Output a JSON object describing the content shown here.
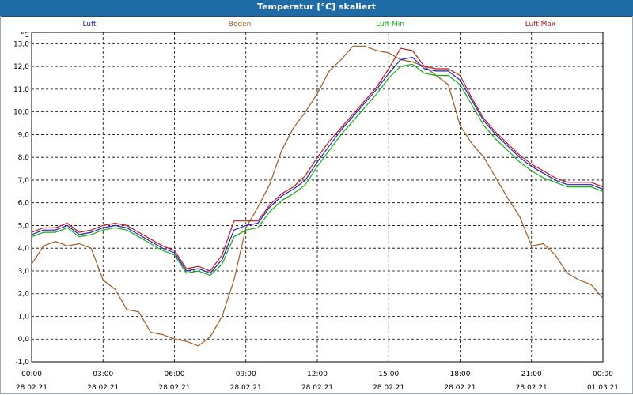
{
  "window": {
    "title": "Temperatur [°C] skaliert"
  },
  "chart_data": {
    "type": "line",
    "title": "Temperatur [°C] skaliert",
    "ylabel": "°C",
    "xlabel": "",
    "ylim": [
      -1.0,
      13.5
    ],
    "yticks": [
      -1.0,
      0.0,
      1.0,
      2.0,
      3.0,
      4.0,
      5.0,
      6.0,
      7.0,
      8.0,
      9.0,
      10.0,
      11.0,
      12.0,
      13.0
    ],
    "ytick_labels": [
      "-1,0",
      "0,0",
      "1,0",
      "2,0",
      "3,0",
      "4,0",
      "5,0",
      "6,0",
      "7,0",
      "8,0",
      "9,0",
      "10,0",
      "11,0",
      "12,0",
      "13,0"
    ],
    "xlim": [
      0,
      24
    ],
    "xticks": [
      0,
      3,
      6,
      9,
      12,
      15,
      18,
      21,
      24
    ],
    "xtick_time_labels": [
      "00:00",
      "03:00",
      "06:00",
      "09:00",
      "12:00",
      "15:00",
      "18:00",
      "21:00",
      "00:00"
    ],
    "xtick_date_labels": [
      "28.02.21",
      "28.02.21",
      "28.02.21",
      "28.02.21",
      "28.02.21",
      "28.02.21",
      "28.02.21",
      "28.02.21",
      "01.03.21"
    ],
    "grid": true,
    "legend_position": "top",
    "x": [
      0,
      0.5,
      1,
      1.5,
      2,
      2.5,
      3,
      3.5,
      4,
      4.5,
      5,
      5.5,
      6,
      6.5,
      7,
      7.5,
      8,
      8.5,
      9,
      9.5,
      10,
      10.5,
      11,
      11.5,
      12,
      12.5,
      13,
      13.5,
      14,
      14.5,
      15,
      15.5,
      16,
      16.5,
      17,
      17.5,
      18,
      18.5,
      19,
      19.5,
      20,
      20.5,
      21,
      21.5,
      22,
      22.5,
      23,
      23.5,
      24
    ],
    "series": [
      {
        "name": "Luft",
        "color": "#2020c0",
        "values": [
          4.6,
          4.8,
          4.8,
          5.0,
          4.6,
          4.7,
          4.9,
          5.0,
          4.9,
          4.6,
          4.3,
          4.0,
          3.8,
          3.0,
          3.1,
          2.9,
          3.5,
          4.8,
          5.0,
          5.1,
          5.8,
          6.3,
          6.6,
          7.0,
          7.8,
          8.5,
          9.2,
          9.8,
          10.4,
          11.0,
          11.7,
          12.3,
          12.4,
          11.9,
          11.8,
          11.8,
          11.4,
          10.5,
          9.6,
          9.0,
          8.5,
          8.0,
          7.6,
          7.3,
          7.0,
          6.8,
          6.8,
          6.8,
          6.6
        ]
      },
      {
        "name": "Boden",
        "color": "#a05a1e",
        "values": [
          3.3,
          4.1,
          4.3,
          4.1,
          4.2,
          4.0,
          2.6,
          2.2,
          1.3,
          1.2,
          0.3,
          0.2,
          0.0,
          -0.1,
          -0.3,
          0.1,
          1.0,
          2.6,
          4.9,
          5.8,
          6.8,
          8.3,
          9.3,
          10.0,
          10.8,
          11.8,
          12.3,
          12.9,
          12.9,
          12.7,
          12.6,
          12.3,
          12.2,
          12.0,
          11.6,
          11.2,
          9.4,
          8.6,
          8.0,
          7.1,
          6.2,
          5.4,
          4.1,
          4.2,
          3.7,
          2.9,
          2.6,
          2.4,
          1.8
        ]
      },
      {
        "name": "Luft Min",
        "color": "#10b010",
        "values": [
          4.5,
          4.7,
          4.7,
          4.9,
          4.5,
          4.6,
          4.8,
          4.9,
          4.8,
          4.5,
          4.2,
          3.9,
          3.7,
          2.9,
          3.0,
          2.8,
          3.3,
          4.5,
          4.8,
          4.9,
          5.6,
          6.1,
          6.4,
          6.8,
          7.6,
          8.3,
          9.0,
          9.6,
          10.2,
          10.8,
          11.5,
          12.0,
          12.1,
          11.7,
          11.6,
          11.6,
          11.2,
          10.3,
          9.4,
          8.8,
          8.3,
          7.8,
          7.4,
          7.1,
          6.9,
          6.7,
          6.7,
          6.7,
          6.5
        ]
      },
      {
        "name": "Luft Max",
        "color": "#c01818",
        "values": [
          4.7,
          4.9,
          4.9,
          5.1,
          4.7,
          4.8,
          5.0,
          5.1,
          5.0,
          4.7,
          4.4,
          4.1,
          3.9,
          3.1,
          3.2,
          3.0,
          3.7,
          5.2,
          5.2,
          5.2,
          5.9,
          6.4,
          6.7,
          7.2,
          8.0,
          8.7,
          9.3,
          9.9,
          10.5,
          11.1,
          11.9,
          12.8,
          12.7,
          12.0,
          11.9,
          11.9,
          11.6,
          10.6,
          9.7,
          9.1,
          8.6,
          8.1,
          7.7,
          7.4,
          7.1,
          6.9,
          6.9,
          6.9,
          6.7
        ]
      }
    ]
  }
}
